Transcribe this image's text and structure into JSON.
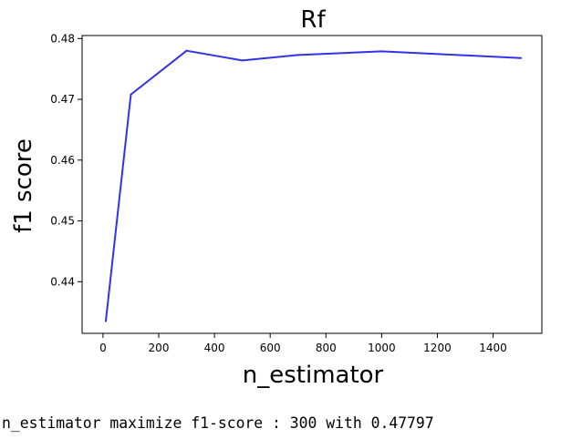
{
  "chart_data": {
    "type": "line",
    "title": "Rf",
    "xlabel": "n_estimator",
    "ylabel": "f1 score",
    "x": [
      10,
      100,
      300,
      500,
      700,
      1000,
      1500
    ],
    "series": [
      {
        "values": [
          0.4335,
          0.4708,
          0.478,
          0.4764,
          0.4773,
          0.4779,
          0.4768
        ],
        "color": "#3333e6"
      }
    ],
    "xlim": [
      -75,
      1575
    ],
    "ylim": [
      0.4315,
      0.4805
    ],
    "xticks": [
      0,
      200,
      400,
      600,
      800,
      1000,
      1200,
      1400
    ],
    "yticks": [
      0.44,
      0.45,
      0.46,
      0.47,
      0.48
    ],
    "ytick_labels": [
      "0.44",
      "0.45",
      "0.46",
      "0.47",
      "0.48"
    ],
    "grid": false,
    "legend": "none"
  },
  "output_text": "n_estimator maximize f1-score : 300 with 0.47797"
}
